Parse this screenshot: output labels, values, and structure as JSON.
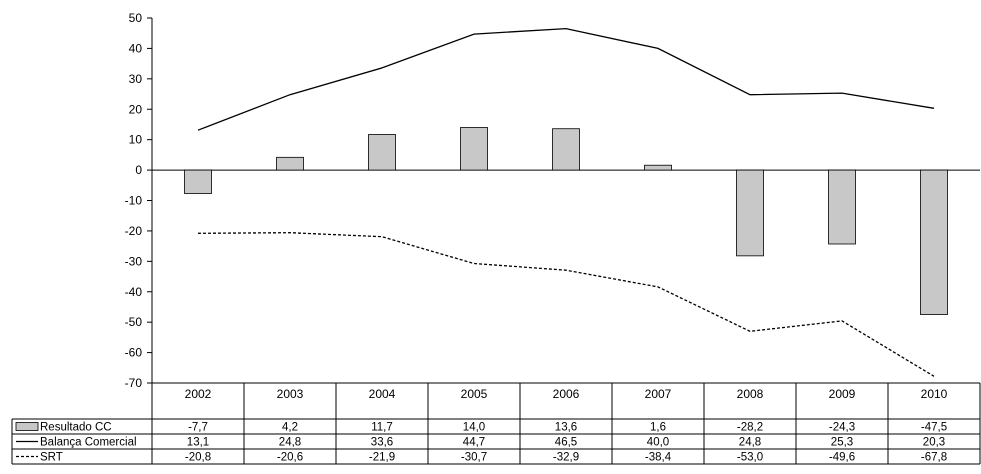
{
  "chart_data": {
    "type": "bar+line",
    "title": "",
    "xlabel": "",
    "ylabel": "",
    "ylim": [
      -70,
      50
    ],
    "y_ticks": [
      "50",
      "40",
      "30",
      "20",
      "10",
      "0",
      "-10",
      "-20",
      "-30",
      "-40",
      "-50",
      "-60",
      "-70"
    ],
    "categories": [
      "2002",
      "2003",
      "2004",
      "2005",
      "2006",
      "2007",
      "2008",
      "2009",
      "2010"
    ],
    "grid": false,
    "legend": "data-table-left",
    "series": [
      {
        "name": "Resultado CC",
        "kind": "bar",
        "color": "#c8c8c8",
        "values": [
          -7.7,
          4.2,
          11.7,
          14.0,
          13.6,
          1.6,
          -28.2,
          -24.3,
          -47.5
        ],
        "labels": [
          "-7,7",
          "4,2",
          "11,7",
          "14,0",
          "13,6",
          "1,6",
          "-28,2",
          "-24,3",
          "-47,5"
        ]
      },
      {
        "name": "Balança Comercial",
        "kind": "line",
        "style": "solid",
        "color": "#000000",
        "values": [
          13.1,
          24.8,
          33.6,
          44.7,
          46.5,
          40.0,
          24.8,
          25.3,
          20.3
        ],
        "labels": [
          "13,1",
          "24,8",
          "33,6",
          "44,7",
          "46,5",
          "40,0",
          "24,8",
          "25,3",
          "20,3"
        ]
      },
      {
        "name": "SRT",
        "kind": "line",
        "style": "dashed",
        "color": "#000000",
        "values": [
          -20.8,
          -20.6,
          -21.9,
          -30.7,
          -32.9,
          -38.4,
          -53.0,
          -49.6,
          -67.8
        ],
        "labels": [
          "-20,8",
          "-20,6",
          "-21,9",
          "-30,7",
          "-32,9",
          "-38,4",
          "-53,0",
          "-49,6",
          "-67,8"
        ]
      }
    ]
  }
}
